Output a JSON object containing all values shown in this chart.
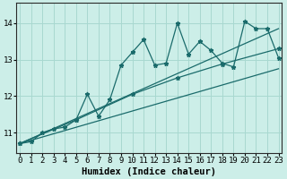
{
  "xlabel": "Humidex (Indice chaleur)",
  "bg_color": "#cceee8",
  "line_color": "#1a6b6b",
  "grid_color": "#a8d8d0",
  "x_ticks": [
    0,
    1,
    2,
    3,
    4,
    5,
    6,
    7,
    8,
    9,
    10,
    11,
    12,
    13,
    14,
    15,
    16,
    17,
    18,
    19,
    20,
    21,
    22,
    23
  ],
  "y_ticks": [
    11,
    12,
    13,
    14
  ],
  "ylim": [
    10.45,
    14.55
  ],
  "xlim": [
    -0.3,
    23.3
  ],
  "spiky_x": [
    0,
    1,
    2,
    3,
    4,
    5,
    6,
    7,
    8,
    9,
    10,
    11,
    12,
    13,
    14,
    15,
    16,
    17,
    18,
    19,
    20,
    21,
    22,
    23
  ],
  "spiky_y": [
    10.7,
    10.75,
    11.0,
    11.1,
    11.15,
    11.35,
    12.05,
    11.45,
    11.9,
    12.85,
    13.2,
    13.55,
    12.85,
    12.9,
    14.0,
    13.15,
    13.5,
    13.25,
    12.9,
    12.8,
    14.05,
    13.85,
    13.85,
    13.05
  ],
  "upper_line_x": [
    0,
    23
  ],
  "upper_line_y": [
    10.7,
    13.85
  ],
  "lower_line_x": [
    0,
    23
  ],
  "lower_line_y": [
    10.7,
    12.75
  ],
  "mid_line_x": [
    0,
    5,
    10,
    14,
    18,
    23
  ],
  "mid_line_y": [
    10.7,
    11.35,
    12.05,
    12.5,
    12.88,
    13.3
  ],
  "marker": "*",
  "marker_size": 3.5,
  "lw": 0.9,
  "xlabel_fontsize": 7.5,
  "tick_fontsize": 6.5
}
